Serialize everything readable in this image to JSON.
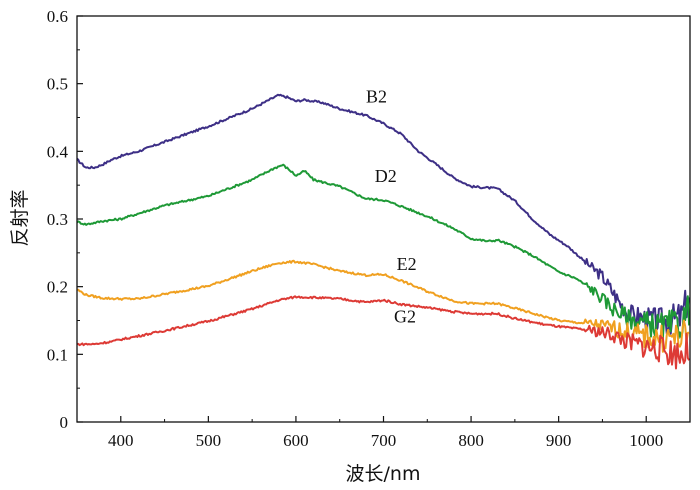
{
  "chart_data": {
    "type": "line",
    "xlabel": "波长/nm",
    "ylabel": "反射率",
    "xlim": [
      350,
      1050
    ],
    "ylim": [
      0,
      0.6
    ],
    "x_ticks": [
      400,
      500,
      600,
      700,
      800,
      900,
      1000
    ],
    "y_ticks": [
      "0",
      "0.1",
      "0.2",
      "0.3",
      "0.4",
      "0.5",
      "0.6"
    ],
    "grid": false,
    "legend": "inline labels",
    "series": [
      {
        "name": "B2",
        "color": "#3d2f86",
        "points": [
          [
            350,
            0.388
          ],
          [
            360,
            0.376
          ],
          [
            370,
            0.376
          ],
          [
            380,
            0.381
          ],
          [
            390,
            0.388
          ],
          [
            400,
            0.393
          ],
          [
            420,
            0.4
          ],
          [
            450,
            0.414
          ],
          [
            500,
            0.437
          ],
          [
            550,
            0.463
          ],
          [
            580,
            0.483
          ],
          [
            590,
            0.48
          ],
          [
            600,
            0.474
          ],
          [
            610,
            0.476
          ],
          [
            630,
            0.472
          ],
          [
            650,
            0.463
          ],
          [
            680,
            0.453
          ],
          [
            700,
            0.441
          ],
          [
            720,
            0.426
          ],
          [
            740,
            0.4
          ],
          [
            760,
            0.381
          ],
          [
            780,
            0.361
          ],
          [
            800,
            0.348
          ],
          [
            820,
            0.346
          ],
          [
            830,
            0.345
          ],
          [
            850,
            0.327
          ],
          [
            870,
            0.3
          ],
          [
            890,
            0.277
          ],
          [
            910,
            0.26
          ],
          [
            930,
            0.237
          ],
          [
            950,
            0.215
          ],
          [
            970,
            0.176
          ],
          [
            980,
            0.16
          ],
          [
            1000,
            0.152
          ],
          [
            1020,
            0.148
          ],
          [
            1040,
            0.155
          ],
          [
            1050,
            0.19
          ]
        ],
        "label_pos": [
          680,
          0.472
        ]
      },
      {
        "name": "D2",
        "color": "#1e9936",
        "points": [
          [
            350,
            0.296
          ],
          [
            360,
            0.292
          ],
          [
            380,
            0.297
          ],
          [
            400,
            0.3
          ],
          [
            420,
            0.308
          ],
          [
            450,
            0.32
          ],
          [
            500,
            0.334
          ],
          [
            550,
            0.358
          ],
          [
            575,
            0.375
          ],
          [
            585,
            0.38
          ],
          [
            595,
            0.37
          ],
          [
            600,
            0.364
          ],
          [
            610,
            0.371
          ],
          [
            620,
            0.358
          ],
          [
            650,
            0.348
          ],
          [
            680,
            0.33
          ],
          [
            700,
            0.328
          ],
          [
            720,
            0.319
          ],
          [
            750,
            0.304
          ],
          [
            780,
            0.286
          ],
          [
            800,
            0.271
          ],
          [
            820,
            0.267
          ],
          [
            830,
            0.269
          ],
          [
            850,
            0.259
          ],
          [
            870,
            0.246
          ],
          [
            900,
            0.222
          ],
          [
            920,
            0.212
          ],
          [
            940,
            0.194
          ],
          [
            960,
            0.17
          ],
          [
            980,
            0.153
          ],
          [
            1000,
            0.146
          ],
          [
            1020,
            0.141
          ],
          [
            1040,
            0.145
          ],
          [
            1050,
            0.17
          ]
        ],
        "label_pos": [
          690,
          0.355
        ]
      },
      {
        "name": "E2",
        "color": "#f0a020",
        "points": [
          [
            350,
            0.196
          ],
          [
            360,
            0.188
          ],
          [
            380,
            0.183
          ],
          [
            400,
            0.182
          ],
          [
            420,
            0.182
          ],
          [
            450,
            0.189
          ],
          [
            500,
            0.201
          ],
          [
            550,
            0.223
          ],
          [
            580,
            0.235
          ],
          [
            600,
            0.237
          ],
          [
            620,
            0.233
          ],
          [
            650,
            0.223
          ],
          [
            680,
            0.217
          ],
          [
            700,
            0.218
          ],
          [
            720,
            0.209
          ],
          [
            750,
            0.193
          ],
          [
            780,
            0.179
          ],
          [
            800,
            0.175
          ],
          [
            830,
            0.175
          ],
          [
            850,
            0.168
          ],
          [
            880,
            0.157
          ],
          [
            900,
            0.15
          ],
          [
            920,
            0.147
          ],
          [
            940,
            0.145
          ],
          [
            960,
            0.14
          ],
          [
            980,
            0.132
          ],
          [
            1000,
            0.126
          ],
          [
            1020,
            0.124
          ],
          [
            1040,
            0.124
          ],
          [
            1050,
            0.128
          ]
        ],
        "label_pos": [
          715,
          0.225
        ]
      },
      {
        "name": "G2",
        "color": "#dd3a35",
        "points": [
          [
            350,
            0.115
          ],
          [
            370,
            0.115
          ],
          [
            390,
            0.119
          ],
          [
            400,
            0.122
          ],
          [
            420,
            0.127
          ],
          [
            450,
            0.135
          ],
          [
            500,
            0.149
          ],
          [
            550,
            0.167
          ],
          [
            580,
            0.18
          ],
          [
            600,
            0.185
          ],
          [
            620,
            0.184
          ],
          [
            650,
            0.182
          ],
          [
            680,
            0.177
          ],
          [
            700,
            0.18
          ],
          [
            720,
            0.174
          ],
          [
            750,
            0.169
          ],
          [
            780,
            0.163
          ],
          [
            800,
            0.16
          ],
          [
            830,
            0.16
          ],
          [
            850,
            0.153
          ],
          [
            880,
            0.145
          ],
          [
            900,
            0.141
          ],
          [
            920,
            0.138
          ],
          [
            940,
            0.135
          ],
          [
            960,
            0.13
          ],
          [
            980,
            0.118
          ],
          [
            1000,
            0.112
          ],
          [
            1020,
            0.106
          ],
          [
            1040,
            0.1
          ],
          [
            1050,
            0.11
          ]
        ],
        "label_pos": [
          712,
          0.147
        ]
      }
    ]
  }
}
